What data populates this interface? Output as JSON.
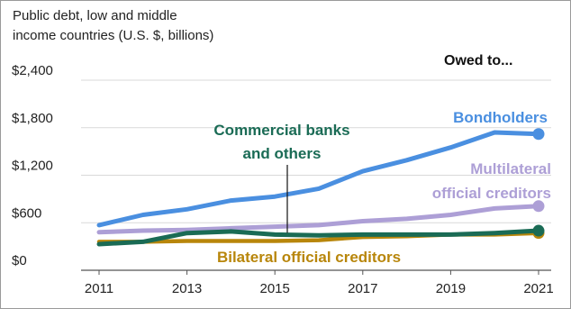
{
  "chart_data": {
    "type": "line",
    "title_lines": [
      "Public debt, low and middle",
      "income countries (U.S. $, billions)"
    ],
    "legend_title": "Owed to...",
    "x": [
      2011,
      2012,
      2013,
      2014,
      2015,
      2016,
      2017,
      2018,
      2019,
      2020,
      2021
    ],
    "x_ticks": [
      "2011",
      "2013",
      "2015",
      "2017",
      "2019",
      "2021"
    ],
    "y_ticks": [
      "$0",
      "$600",
      "$1,200",
      "$1,800",
      "$2,400"
    ],
    "ylim": [
      0,
      2400
    ],
    "grid": "horizontal",
    "series": [
      {
        "name": "Bondholders",
        "label_lines": [
          "Bondholders"
        ],
        "color": "#4a8fe0",
        "values": [
          570,
          700,
          770,
          880,
          930,
          1030,
          1250,
          1390,
          1550,
          1740,
          1720
        ]
      },
      {
        "name": "Multilateral official creditors",
        "label_lines": [
          "Multilateral",
          "official creditors"
        ],
        "color": "#ad9fd6",
        "values": [
          480,
          500,
          510,
          530,
          550,
          570,
          620,
          650,
          700,
          780,
          810
        ]
      },
      {
        "name": "Commercial banks and others",
        "label_lines": [
          "Commercial banks",
          "and others"
        ],
        "color": "#1a6b55",
        "values": [
          330,
          360,
          470,
          490,
          450,
          440,
          450,
          450,
          450,
          470,
          500
        ]
      },
      {
        "name": "Bilateral official creditors",
        "label_lines": [
          "Bilateral official creditors"
        ],
        "color": "#b8860b",
        "values": [
          360,
          360,
          370,
          370,
          370,
          380,
          420,
          430,
          450,
          450,
          470
        ]
      }
    ]
  }
}
